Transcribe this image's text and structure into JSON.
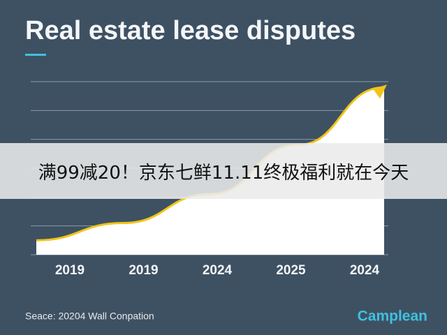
{
  "chart_data": {
    "type": "area",
    "title": "Real estate lease disputes",
    "categories": [
      "2019",
      "2019",
      "2024",
      "2025",
      "2024"
    ],
    "values": [
      0.5,
      1.1,
      2.1,
      3.8,
      5.8
    ],
    "color": "#ffffff",
    "line_color": "#f2c418",
    "ylim": [
      0,
      6
    ],
    "yticks": [
      0,
      1,
      2,
      3,
      4,
      5,
      6
    ],
    "grid": true,
    "source": "Seace: 20204 Wall Conpation",
    "logo": "Camplean"
  },
  "banner": {
    "text": "满99减20！京东七鲜11.11终极福利就在今天"
  }
}
